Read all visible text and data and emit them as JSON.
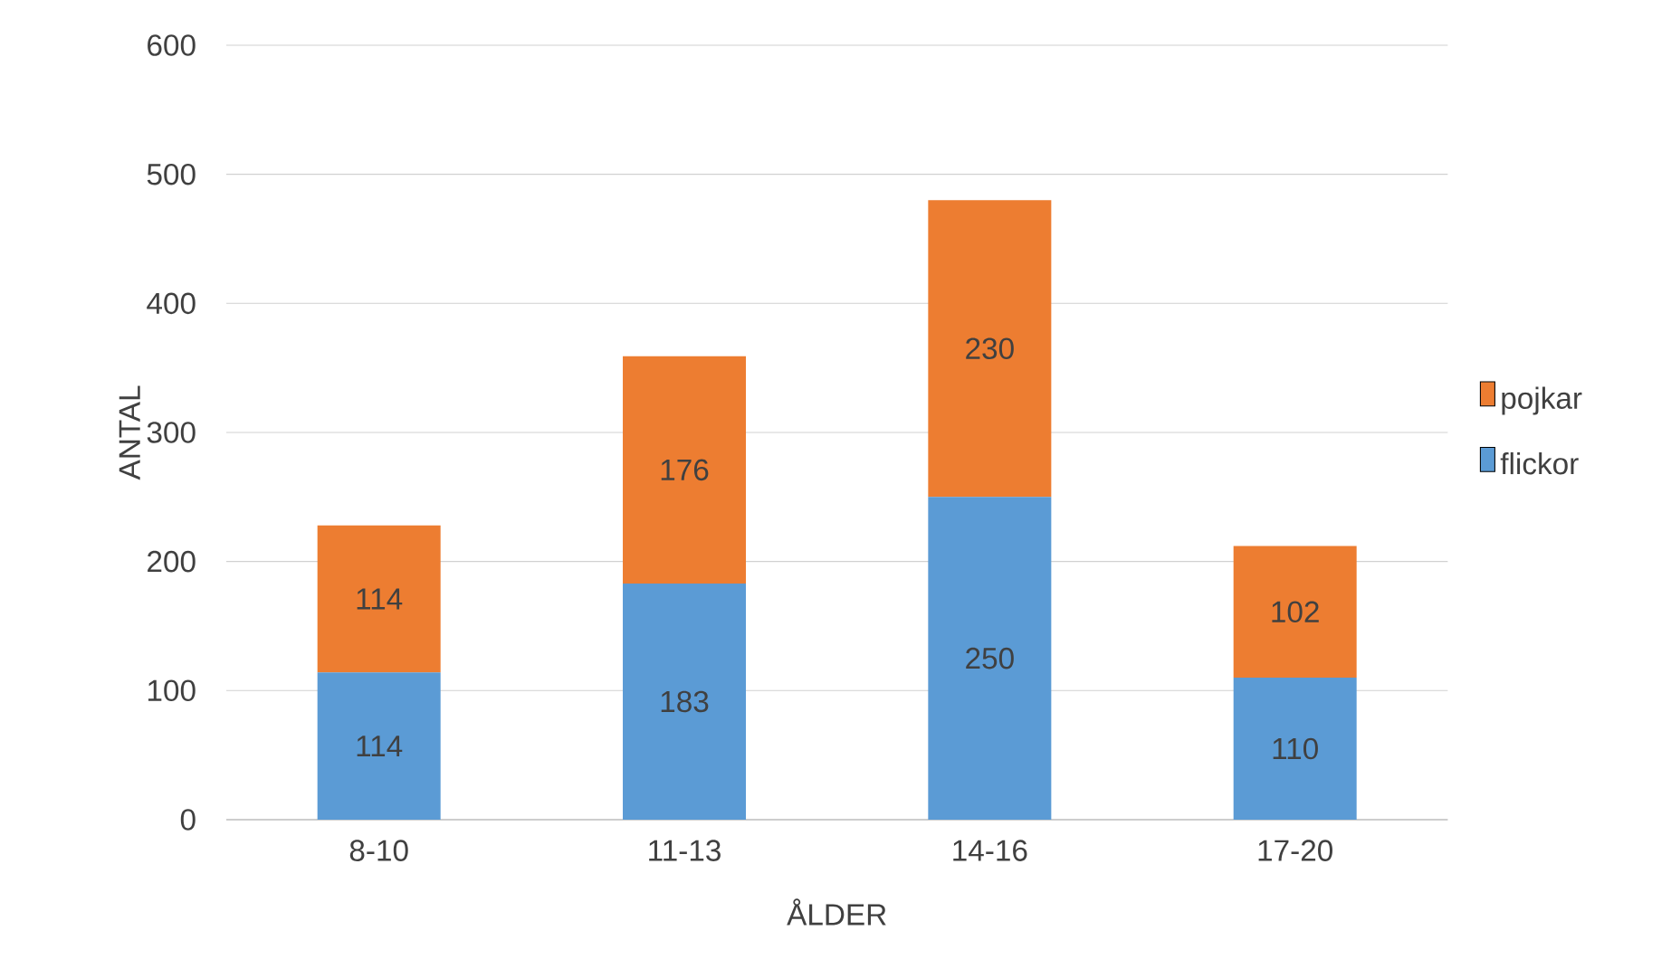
{
  "chart_data": {
    "type": "bar",
    "stacked": true,
    "xlabel": "ÅLDER",
    "ylabel": "ANTAL",
    "categories": [
      "8-10",
      "11-13",
      "14-16",
      "17-20"
    ],
    "series": [
      {
        "name": "flickor",
        "color": "#5b9bd5",
        "values": [
          114,
          183,
          250,
          110
        ]
      },
      {
        "name": "pojkar",
        "color": "#ed7d31",
        "values": [
          114,
          176,
          230,
          102
        ]
      }
    ],
    "ylim": [
      0,
      600
    ],
    "yticks": [
      0,
      100,
      200,
      300,
      400,
      500,
      600
    ],
    "grid": "y",
    "legend": "right",
    "data_labels": true
  }
}
